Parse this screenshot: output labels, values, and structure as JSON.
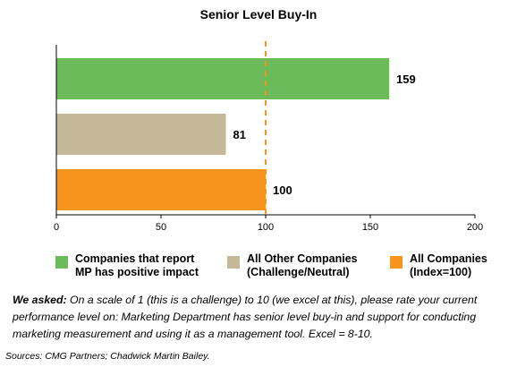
{
  "chart_data": {
    "type": "bar",
    "orientation": "horizontal",
    "title": "Senior Level Buy-In",
    "categories": [
      "Companies that report MP has positive impact",
      "All Other Companies (Challenge/Neutral)",
      "All Companies (Index=100)"
    ],
    "values": [
      159,
      81,
      100
    ],
    "colors": [
      "#6cbb5a",
      "#c4b898",
      "#f7941d"
    ],
    "reference_line": 100,
    "xlim": [
      0,
      200
    ],
    "xticks": [
      0,
      50,
      100,
      150,
      200
    ],
    "grid": false,
    "legend_position": "bottom"
  },
  "legend": [
    {
      "text": "Companies that report\nMP has positive impact",
      "color": "#6cbb5a"
    },
    {
      "text": "All Other Companies\n(Challenge/Neutral)",
      "color": "#c4b898"
    },
    {
      "text": "All Companies\n(Index=100)",
      "color": "#f7941d"
    }
  ],
  "note": {
    "lead": "We asked:",
    "text": " On a scale of 1 (this is a challenge) to 10 (we excel at this), please rate your current performance level on: Marketing Department has senior level buy-in and support for conducting marketing measurement and using it as a management tool.  Excel = 8-10."
  },
  "sources": "Sources: CMG Partners; Chadwick Martin Bailey."
}
